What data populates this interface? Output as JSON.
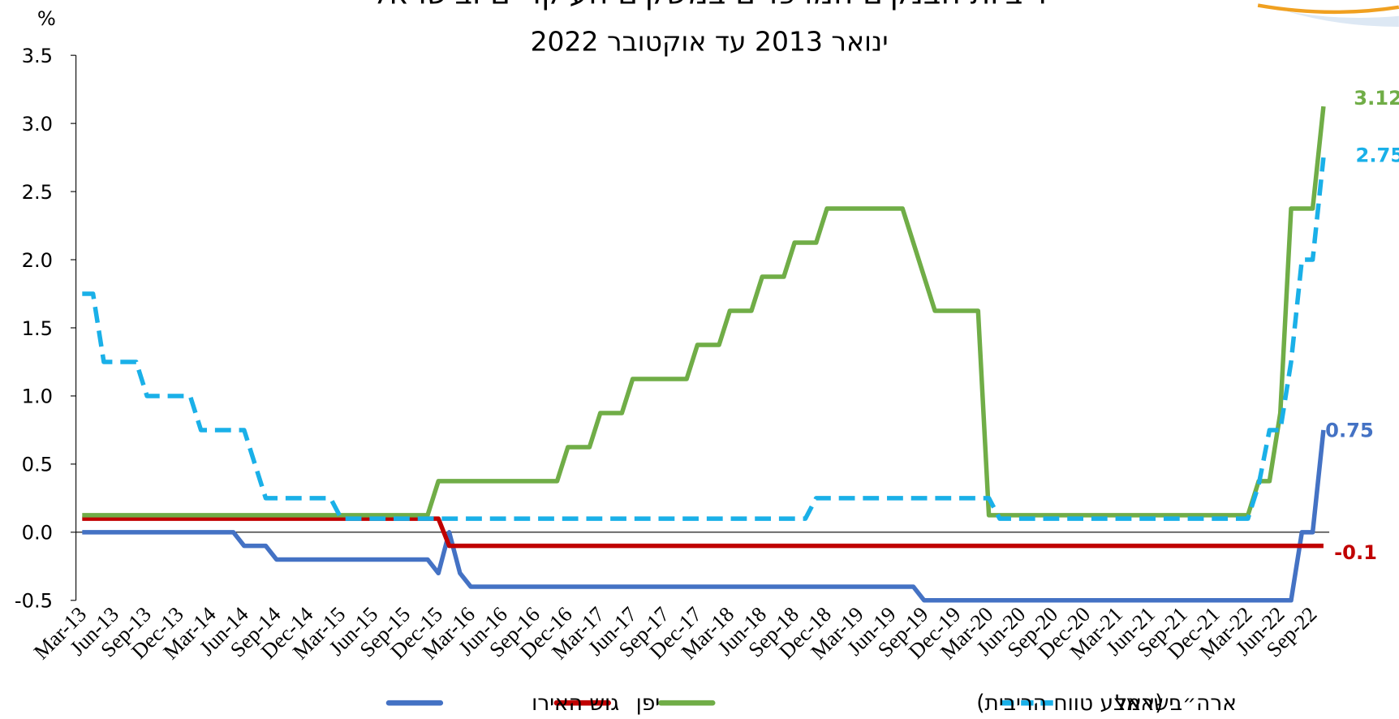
{
  "chart_data": {
    "type": "line",
    "title": "ריביות הבנקים המרכזיים במשקים העיקריים ובישראל",
    "subtitle": "ינואר 2013 עד אוקטובר 2022",
    "y_label": "%",
    "categories": [
      "Mar-13",
      null,
      null,
      "Jun-13",
      null,
      null,
      "Sep-13",
      null,
      null,
      "Dec-13",
      null,
      null,
      "Mar-14",
      null,
      null,
      "Jun-14",
      null,
      null,
      "Sep-14",
      null,
      null,
      "Dec-14",
      null,
      null,
      "Mar-15",
      null,
      null,
      "Jun-15",
      null,
      null,
      "Sep-15",
      null,
      null,
      "Dec-15",
      null,
      null,
      "Mar-16",
      null,
      null,
      "Jun-16",
      null,
      null,
      "Sep-16",
      null,
      null,
      "Dec-16",
      null,
      null,
      "Mar-17",
      null,
      null,
      "Jun-17",
      null,
      null,
      "Sep-17",
      null,
      null,
      "Dec-17",
      null,
      null,
      "Mar-18",
      null,
      null,
      "Jun-18",
      null,
      null,
      "Sep-18",
      null,
      null,
      "Dec-18",
      null,
      null,
      "Mar-19",
      null,
      null,
      "Jun-19",
      null,
      null,
      "Sep-19",
      null,
      null,
      "Dec-19",
      null,
      null,
      "Mar-20",
      null,
      null,
      "Jun-20",
      null,
      null,
      "Sep-20",
      null,
      null,
      "Dec-20",
      null,
      null,
      "Mar-21",
      null,
      null,
      "Jun-21",
      null,
      null,
      "Sep-21",
      null,
      null,
      "Dec-21",
      null,
      null,
      "Mar-22",
      null,
      null,
      "Jun-22",
      null,
      null,
      "Sep-22",
      null
    ],
    "series": [
      {
        "name": "ישראל",
        "color": "#1ab0e8",
        "dashed": true,
        "values": [
          1.75,
          1.75,
          1.25,
          1.25,
          1.25,
          1.25,
          1.0,
          1.0,
          1.0,
          1.0,
          1.0,
          0.75,
          0.75,
          0.75,
          0.75,
          0.75,
          0.5,
          0.25,
          0.25,
          0.25,
          0.25,
          0.25,
          0.25,
          0.25,
          0.1,
          0.1,
          0.1,
          0.1,
          0.1,
          0.1,
          0.1,
          0.1,
          0.1,
          0.1,
          0.1,
          0.1,
          0.1,
          0.1,
          0.1,
          0.1,
          0.1,
          0.1,
          0.1,
          0.1,
          0.1,
          0.1,
          0.1,
          0.1,
          0.1,
          0.1,
          0.1,
          0.1,
          0.1,
          0.1,
          0.1,
          0.1,
          0.1,
          0.1,
          0.1,
          0.1,
          0.1,
          0.1,
          0.1,
          0.1,
          0.1,
          0.1,
          0.1,
          0.1,
          0.25,
          0.25,
          0.25,
          0.25,
          0.25,
          0.25,
          0.25,
          0.25,
          0.25,
          0.25,
          0.25,
          0.25,
          0.25,
          0.25,
          0.25,
          0.25,
          0.25,
          0.1,
          0.1,
          0.1,
          0.1,
          0.1,
          0.1,
          0.1,
          0.1,
          0.1,
          0.1,
          0.1,
          0.1,
          0.1,
          0.1,
          0.1,
          0.1,
          0.1,
          0.1,
          0.1,
          0.1,
          0.1,
          0.1,
          0.1,
          0.1,
          0.35,
          0.75,
          0.75,
          1.25,
          2.0,
          2.0,
          2.75
        ]
      },
      {
        "name": "ארה״ב (אמצע טווח הריבית)",
        "color": "#70ad47",
        "dashed": false,
        "values": [
          0.125,
          0.125,
          0.125,
          0.125,
          0.125,
          0.125,
          0.125,
          0.125,
          0.125,
          0.125,
          0.125,
          0.125,
          0.125,
          0.125,
          0.125,
          0.125,
          0.125,
          0.125,
          0.125,
          0.125,
          0.125,
          0.125,
          0.125,
          0.125,
          0.125,
          0.125,
          0.125,
          0.125,
          0.125,
          0.125,
          0.125,
          0.125,
          0.125,
          0.375,
          0.375,
          0.375,
          0.375,
          0.375,
          0.375,
          0.375,
          0.375,
          0.375,
          0.375,
          0.375,
          0.375,
          0.625,
          0.625,
          0.625,
          0.875,
          0.875,
          0.875,
          1.125,
          1.125,
          1.125,
          1.125,
          1.125,
          1.125,
          1.375,
          1.375,
          1.375,
          1.625,
          1.625,
          1.625,
          1.875,
          1.875,
          1.875,
          2.125,
          2.125,
          2.125,
          2.375,
          2.375,
          2.375,
          2.375,
          2.375,
          2.375,
          2.375,
          2.375,
          2.125,
          1.875,
          1.625,
          1.625,
          1.625,
          1.625,
          1.625,
          0.125,
          0.125,
          0.125,
          0.125,
          0.125,
          0.125,
          0.125,
          0.125,
          0.125,
          0.125,
          0.125,
          0.125,
          0.125,
          0.125,
          0.125,
          0.125,
          0.125,
          0.125,
          0.125,
          0.125,
          0.125,
          0.125,
          0.125,
          0.125,
          0.125,
          0.375,
          0.375,
          0.875,
          2.375,
          2.375,
          2.375,
          3.125
        ]
      },
      {
        "name": "יפן",
        "color": "#c00000",
        "dashed": false,
        "values": [
          0.1,
          0.1,
          0.1,
          0.1,
          0.1,
          0.1,
          0.1,
          0.1,
          0.1,
          0.1,
          0.1,
          0.1,
          0.1,
          0.1,
          0.1,
          0.1,
          0.1,
          0.1,
          0.1,
          0.1,
          0.1,
          0.1,
          0.1,
          0.1,
          0.1,
          0.1,
          0.1,
          0.1,
          0.1,
          0.1,
          0.1,
          0.1,
          0.1,
          0.1,
          -0.1,
          -0.1,
          -0.1,
          -0.1,
          -0.1,
          -0.1,
          -0.1,
          -0.1,
          -0.1,
          -0.1,
          -0.1,
          -0.1,
          -0.1,
          -0.1,
          -0.1,
          -0.1,
          -0.1,
          -0.1,
          -0.1,
          -0.1,
          -0.1,
          -0.1,
          -0.1,
          -0.1,
          -0.1,
          -0.1,
          -0.1,
          -0.1,
          -0.1,
          -0.1,
          -0.1,
          -0.1,
          -0.1,
          -0.1,
          -0.1,
          -0.1,
          -0.1,
          -0.1,
          -0.1,
          -0.1,
          -0.1,
          -0.1,
          -0.1,
          -0.1,
          -0.1,
          -0.1,
          -0.1,
          -0.1,
          -0.1,
          -0.1,
          -0.1,
          -0.1,
          -0.1,
          -0.1,
          -0.1,
          -0.1,
          -0.1,
          -0.1,
          -0.1,
          -0.1,
          -0.1,
          -0.1,
          -0.1,
          -0.1,
          -0.1,
          -0.1,
          -0.1,
          -0.1,
          -0.1,
          -0.1,
          -0.1,
          -0.1,
          -0.1,
          -0.1,
          -0.1,
          -0.1,
          -0.1,
          -0.1,
          -0.1,
          -0.1,
          -0.1,
          -0.1
        ]
      },
      {
        "name": "גוש האירו",
        "color": "#4472c4",
        "dashed": false,
        "values": [
          0,
          0,
          0,
          0,
          0,
          0,
          0,
          0,
          0,
          0,
          0,
          0,
          0,
          0,
          0,
          -0.1,
          -0.1,
          -0.1,
          -0.2,
          -0.2,
          -0.2,
          -0.2,
          -0.2,
          -0.2,
          -0.2,
          -0.2,
          -0.2,
          -0.2,
          -0.2,
          -0.2,
          -0.2,
          -0.2,
          -0.2,
          -0.3,
          0,
          -0.3,
          -0.4,
          -0.4,
          -0.4,
          -0.4,
          -0.4,
          -0.4,
          -0.4,
          -0.4,
          -0.4,
          -0.4,
          -0.4,
          -0.4,
          -0.4,
          -0.4,
          -0.4,
          -0.4,
          -0.4,
          -0.4,
          -0.4,
          -0.4,
          -0.4,
          -0.4,
          -0.4,
          -0.4,
          -0.4,
          -0.4,
          -0.4,
          -0.4,
          -0.4,
          -0.4,
          -0.4,
          -0.4,
          -0.4,
          -0.4,
          -0.4,
          -0.4,
          -0.4,
          -0.4,
          -0.4,
          -0.4,
          -0.4,
          -0.4,
          -0.5,
          -0.5,
          -0.5,
          -0.5,
          -0.5,
          -0.5,
          -0.5,
          -0.5,
          -0.5,
          -0.5,
          -0.5,
          -0.5,
          -0.5,
          -0.5,
          -0.5,
          -0.5,
          -0.5,
          -0.5,
          -0.5,
          -0.5,
          -0.5,
          -0.5,
          -0.5,
          -0.5,
          -0.5,
          -0.5,
          -0.5,
          -0.5,
          -0.5,
          -0.5,
          -0.5,
          -0.5,
          -0.5,
          -0.5,
          -0.5,
          0,
          0,
          0.75
        ]
      }
    ],
    "ylim": [
      -0.5,
      3.5
    ],
    "yticks": [
      -0.5,
      {
        "value": 0,
        "label": "0.0"
      },
      0.5,
      {
        "value": 1,
        "label": "1.0"
      },
      1.5,
      {
        "value": 2,
        "label": "2.0"
      },
      2.5,
      {
        "value": 3,
        "label": "3.0"
      },
      3.5
    ],
    "grid": false,
    "legend": "bottom"
  }
}
